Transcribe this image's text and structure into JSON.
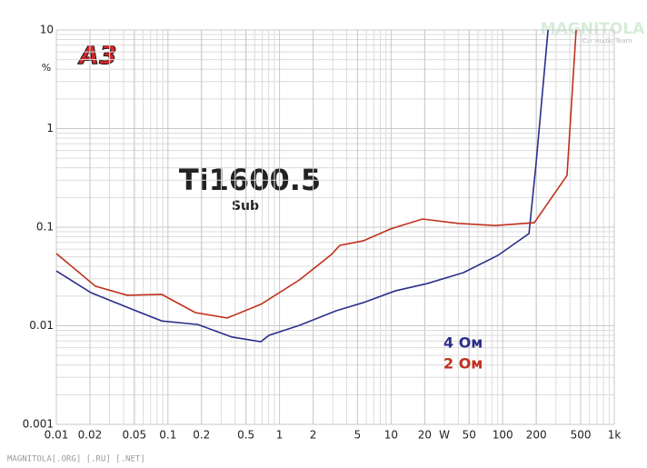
{
  "chart_data": {
    "type": "line",
    "title": "Ti1600.5",
    "subtitle": "Sub",
    "logo": "A3",
    "watermark": "MAGNITOLA",
    "watermark_sub": "Car Audio Team",
    "footer": "MAGNITOLA[.ORG] [.RU] [.NET]",
    "x_label": "W",
    "y_label": "%",
    "xscale": "log",
    "yscale": "log",
    "grid": true,
    "minor_grid": true,
    "xlim": [
      0.01,
      1000
    ],
    "ylim": [
      0.001,
      10
    ],
    "xticks": [
      0.01,
      0.02,
      0.05,
      0.1,
      0.2,
      0.5,
      1,
      2,
      5,
      10,
      20,
      50,
      100,
      200,
      500,
      {
        "value": 1000,
        "label": "1k"
      }
    ],
    "yticks": [
      0.001,
      0.01,
      0.1,
      1,
      10
    ],
    "series": [
      {
        "name": "4 Ом",
        "color": "#2b2f8a",
        "x": [
          0.01,
          0.0204,
          0.047,
          0.088,
          0.186,
          0.373,
          0.68,
          0.805,
          1.51,
          3.22,
          5.65,
          10.9,
          21,
          44.5,
          90.8,
          172,
          199,
          255
        ],
        "values": [
          0.036,
          0.0217,
          0.0148,
          0.0112,
          0.0103,
          0.0077,
          0.0069,
          0.008,
          0.0101,
          0.0142,
          0.0172,
          0.0226,
          0.0268,
          0.0346,
          0.0518,
          0.0861,
          0.44,
          10
        ]
      },
      {
        "name": "2 Ом",
        "color": "#c0301c",
        "x": [
          0.01,
          0.0224,
          0.0432,
          0.088,
          0.176,
          0.34,
          0.68,
          1.51,
          2.93,
          3.47,
          5.65,
          9.9,
          19.1,
          40.5,
          85.7,
          192,
          377,
          455
        ],
        "values": [
          0.054,
          0.0252,
          0.0204,
          0.0208,
          0.0136,
          0.012,
          0.0165,
          0.0292,
          0.053,
          0.0654,
          0.0728,
          0.096,
          0.121,
          0.109,
          0.104,
          0.111,
          0.335,
          10
        ]
      }
    ]
  }
}
